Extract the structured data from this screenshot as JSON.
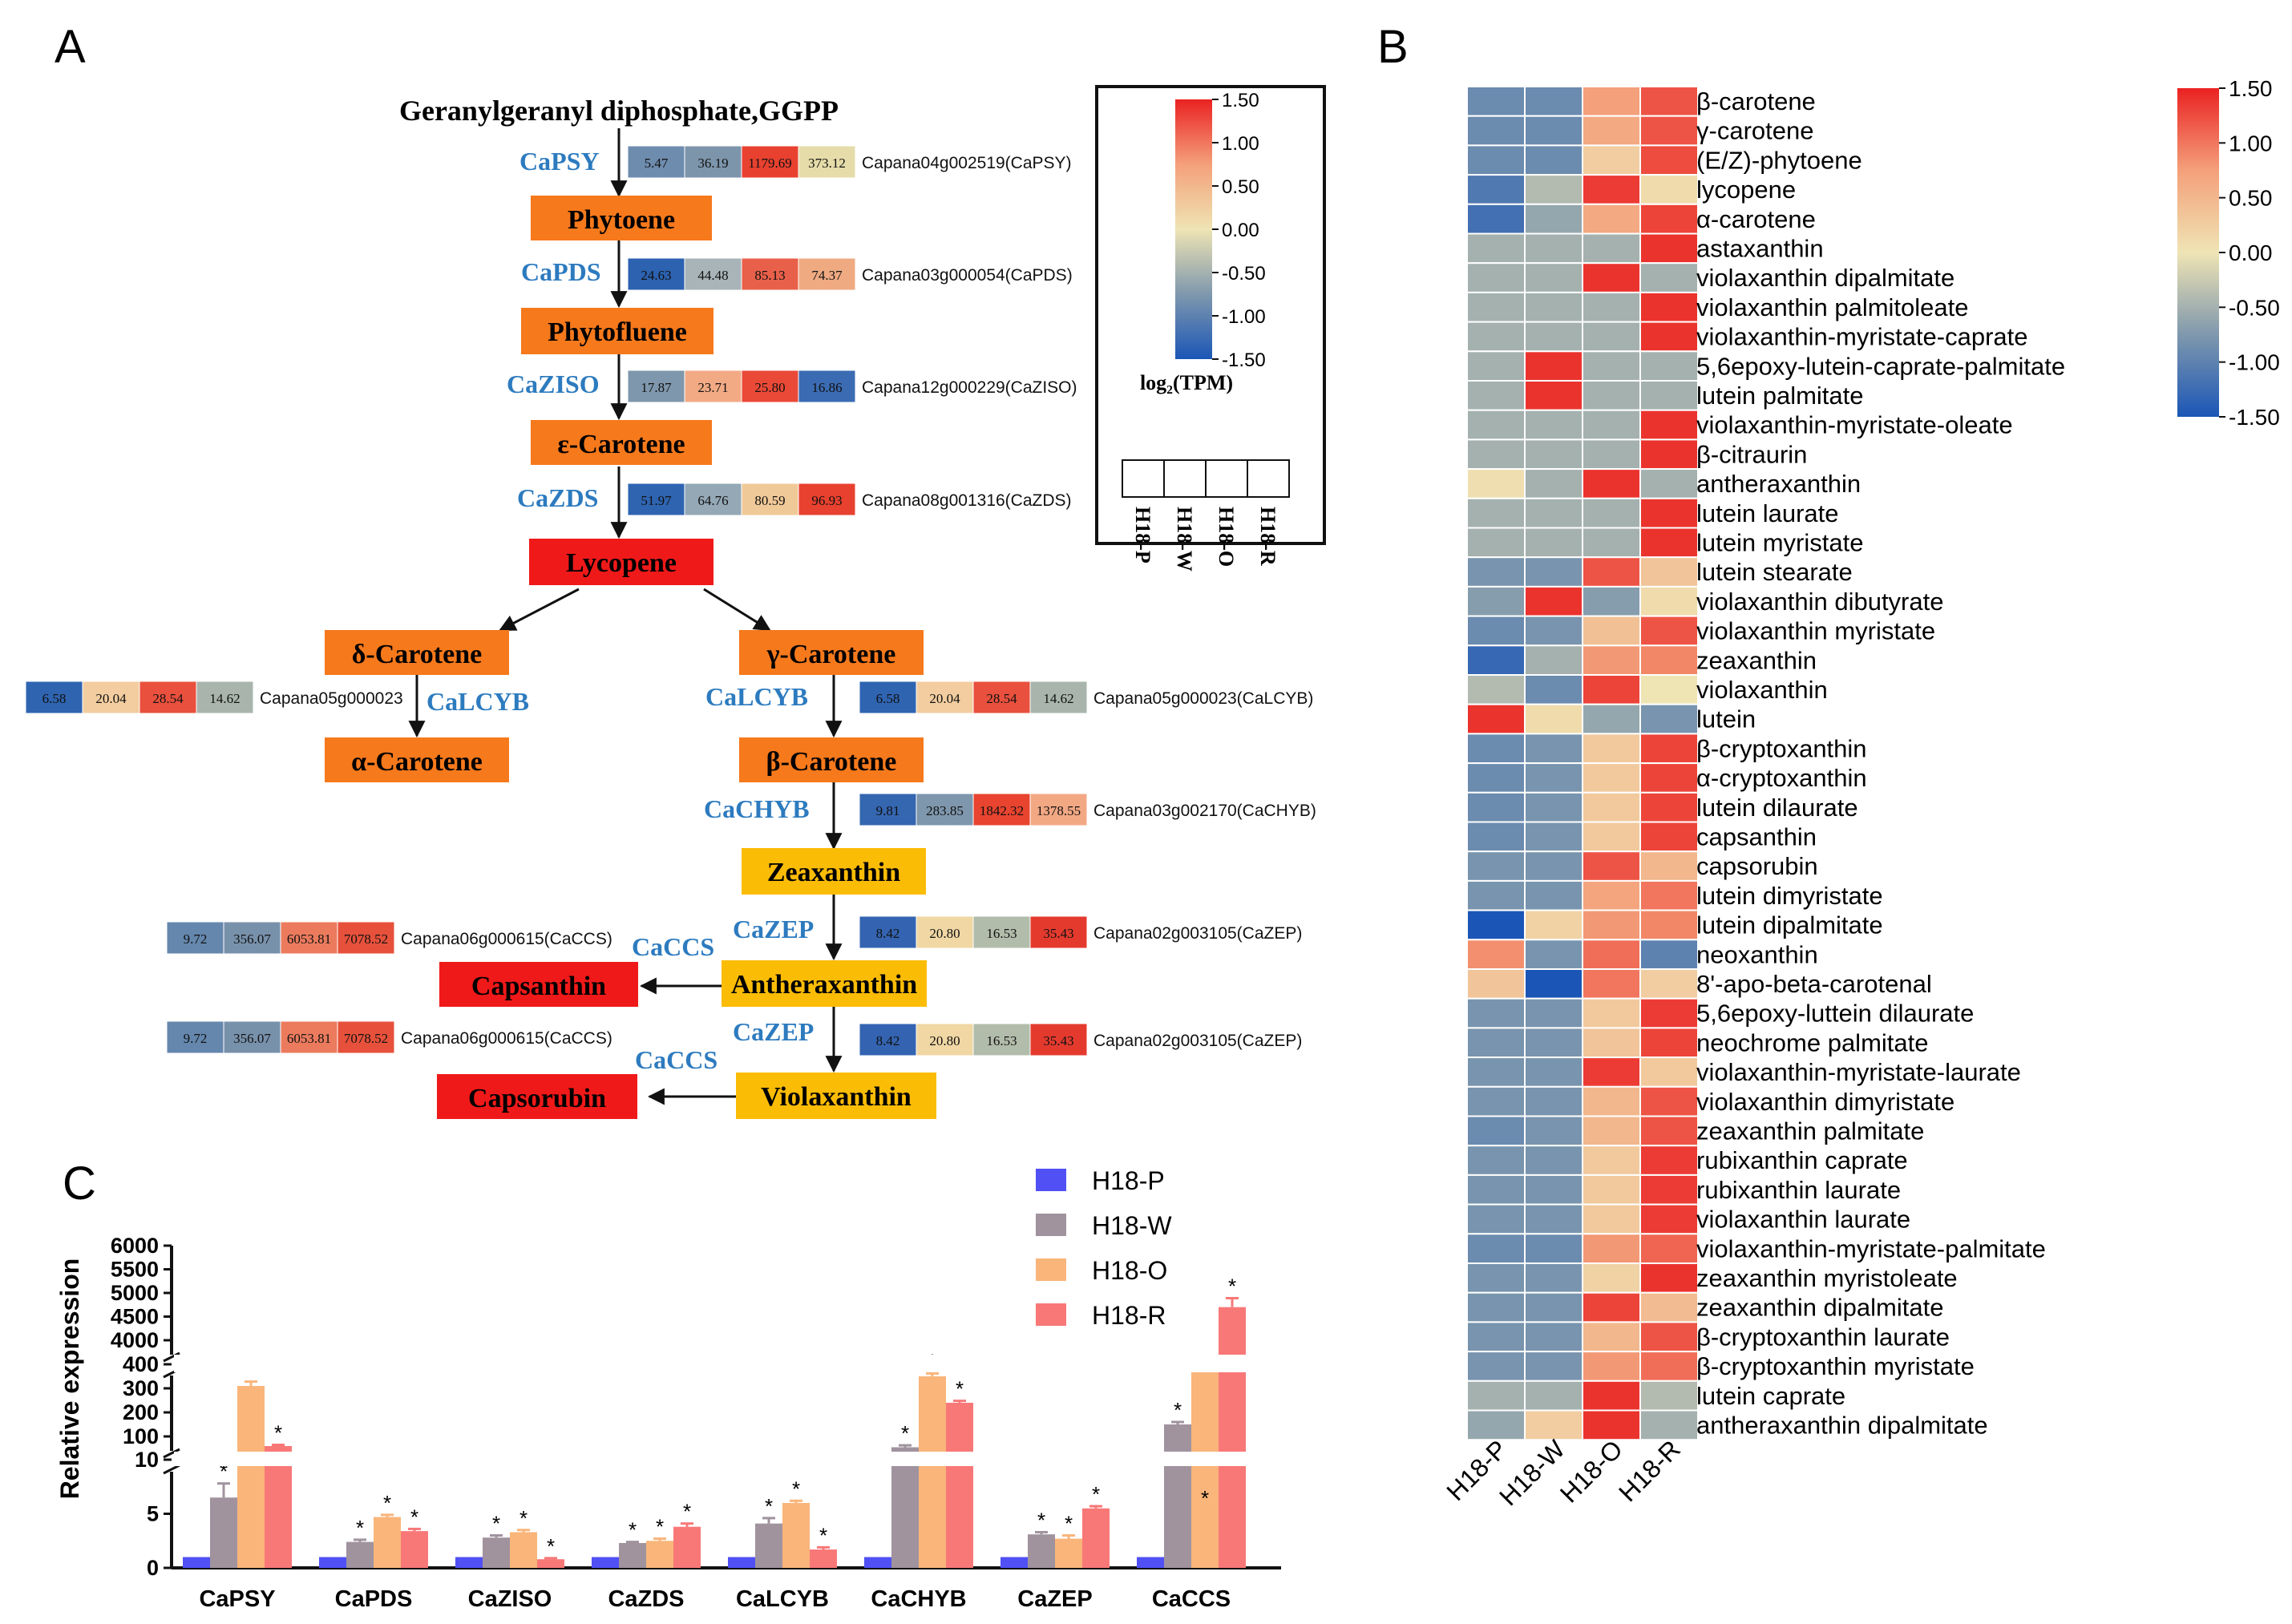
{
  "panelA": {
    "label": "A",
    "top_title": "Geranylgeranyl diphosphate,GGPP",
    "compounds": [
      {
        "name": "Phytoene",
        "color": "#f6791c"
      },
      {
        "name": "Phytofluene",
        "color": "#f6791c"
      },
      {
        "name": "ε-Carotene",
        "color": "#f6791c"
      },
      {
        "name": "Lycopene",
        "color": "#f01919"
      },
      {
        "name": "δ-Carotene",
        "color": "#f6791c"
      },
      {
        "name": "γ-Carotene",
        "color": "#f6791c"
      },
      {
        "name": "α-Carotene",
        "color": "#f6791c"
      },
      {
        "name": "β-Carotene",
        "color": "#f6791c"
      },
      {
        "name": "Zeaxanthin",
        "color": "#fbbc06"
      },
      {
        "name": "Antheraxanthin",
        "color": "#fbbc06"
      },
      {
        "name": "Capsanthin",
        "color": "#f01919"
      },
      {
        "name": "Violaxanthin",
        "color": "#fbbc06"
      },
      {
        "name": "Capsorubin",
        "color": "#f01919"
      }
    ],
    "enzymes": [
      "CaPSY",
      "CaPDS",
      "CaZISO",
      "CaZDS",
      "CaLCYB",
      "CaLCYB",
      "CaCHYB",
      "CaZEP",
      "CaCCS",
      "CaZEP",
      "CaCCS"
    ],
    "expression": [
      {
        "gene": "Capana04g002519(CaPSY)",
        "values": [
          "5.47",
          "36.19",
          "1179.69",
          "373.12"
        ],
        "colors": [
          "#6e8cae",
          "#7d95ab",
          "#e8412f",
          "#e6dcaa"
        ]
      },
      {
        "gene": "Capana03g000054(CaPDS)",
        "values": [
          "24.63",
          "44.48",
          "85.13",
          "74.37"
        ],
        "colors": [
          "#2c62b0",
          "#a8b4b8",
          "#e9604a",
          "#efaa82"
        ]
      },
      {
        "gene": "Capana12g000229(CaZISO)",
        "values": [
          "17.87",
          "23.71",
          "25.80",
          "16.86"
        ],
        "colors": [
          "#7f97ac",
          "#f2aa85",
          "#ea4937",
          "#3b6bb3"
        ]
      },
      {
        "gene": "Capana08g001316(CaZDS)",
        "values": [
          "51.97",
          "64.76",
          "80.59",
          "96.93"
        ],
        "colors": [
          "#2f64b1",
          "#94a8b6",
          "#f0c998",
          "#e8412f"
        ]
      },
      {
        "gene": "Capana05g000023",
        "values": [
          "6.58",
          "20.04",
          "28.54",
          "14.62"
        ],
        "colors": [
          "#2f64b1",
          "#f3cd9f",
          "#e9503d",
          "#a9b5ac"
        ]
      },
      {
        "gene": "Capana05g000023(CaLCYB)",
        "values": [
          "6.58",
          "20.04",
          "28.54",
          "14.62"
        ],
        "colors": [
          "#2f64b1",
          "#f3cd9f",
          "#e9503d",
          "#a9b5ac"
        ]
      },
      {
        "gene": "Capana03g002170(CaCHYB)",
        "values": [
          "9.81",
          "283.85",
          "1842.32",
          "1378.55"
        ],
        "colors": [
          "#3566b0",
          "#7e97ad",
          "#e8442f",
          "#f3a884"
        ]
      },
      {
        "gene": "Capana06g000615(CaCCS)",
        "values": [
          "9.72",
          "356.07",
          "6053.81",
          "7078.52"
        ],
        "colors": [
          "#6587ad",
          "#7891ab",
          "#ec7b5e",
          "#e7513b"
        ]
      },
      {
        "gene": "Capana02g003105(CaZEP)",
        "values": [
          "8.42",
          "20.80",
          "16.53",
          "35.43"
        ],
        "colors": [
          "#3464b1",
          "#f0d7a4",
          "#b2bcaa",
          "#e43a2e"
        ]
      },
      {
        "gene": "Capana06g000615(CaCCS)",
        "values": [
          "9.72",
          "356.07",
          "6053.81",
          "7078.52"
        ],
        "colors": [
          "#6587ad",
          "#7891ab",
          "#ec7b5e",
          "#e7513b"
        ]
      },
      {
        "gene": "Capana02g003105(CaZEP)",
        "values": [
          "8.42",
          "20.80",
          "16.53",
          "35.43"
        ],
        "colors": [
          "#3464b1",
          "#f0d7a4",
          "#b2bcaa",
          "#e43a2e"
        ]
      }
    ],
    "legend": {
      "ticks": [
        "1.50",
        "1.00",
        "0.50",
        "0.00",
        "-0.50",
        "-1.00",
        "-1.50"
      ],
      "title": "log₂(TPM)",
      "samples": [
        "H18-P",
        "H18-W",
        "H18-O",
        "H18-R"
      ]
    }
  },
  "panelB": {
    "label": "B",
    "samples": [
      "H18-P",
      "H18-W",
      "H18-O",
      "H18-R"
    ],
    "compounds": [
      "β-carotene",
      "γ-carotene",
      "(E/Z)-phytoene",
      "lycopene",
      "α-carotene",
      "astaxanthin",
      "violaxanthin dipalmitate",
      "violaxanthin palmitoleate",
      "violaxanthin-myristate-caprate",
      "5,6epoxy-lutein-caprate-palmitate",
      "lutein palmitate",
      "violaxanthin-myristate-oleate",
      "β-citraurin",
      "antheraxanthin",
      "lutein laurate",
      "lutein myristate",
      "lutein stearate",
      "violaxanthin dibutyrate",
      "violaxanthin myristate",
      "zeaxanthin",
      "violaxanthin",
      "lutein",
      "β-cryptoxanthin",
      "α-cryptoxanthin",
      "lutein dilaurate",
      "capsanthin",
      "capsorubin",
      "lutein dimyristate",
      "lutein dipalmitate",
      "neoxanthin",
      "8'-apo-beta-carotenal",
      "5,6epoxy-luttein dilaurate",
      "neochrome palmitate",
      "violaxanthin-myristate-laurate",
      "violaxanthin dimyristate",
      "zeaxanthin palmitate",
      "rubixanthin caprate",
      "rubixanthin laurate",
      "violaxanthin laurate",
      "violaxanthin-myristate-palmitate",
      "zeaxanthin myristoleate",
      "zeaxanthin dipalmitate",
      "β-cryptoxanthin laurate",
      "β-cryptoxanthin myristate",
      "lutein caprate",
      "antheraxanthin dipalmitate"
    ],
    "z": [
      [
        -0.9,
        -0.9,
        0.75,
        1.2
      ],
      [
        -0.9,
        -0.9,
        0.65,
        1.2
      ],
      [
        -0.9,
        -0.9,
        0.25,
        1.25
      ],
      [
        -1.1,
        -0.4,
        1.35,
        0.1
      ],
      [
        -1.2,
        -0.6,
        0.65,
        1.3
      ],
      [
        -0.5,
        -0.5,
        -0.5,
        1.4
      ],
      [
        -0.5,
        -0.5,
        1.4,
        -0.5
      ],
      [
        -0.5,
        -0.5,
        -0.5,
        1.4
      ],
      [
        -0.5,
        -0.5,
        -0.5,
        1.4
      ],
      [
        -0.5,
        1.4,
        -0.5,
        -0.5
      ],
      [
        -0.5,
        1.4,
        -0.5,
        -0.5
      ],
      [
        -0.5,
        -0.5,
        -0.5,
        1.4
      ],
      [
        -0.5,
        -0.5,
        -0.5,
        1.4
      ],
      [
        0.05,
        -0.5,
        1.4,
        -0.5
      ],
      [
        -0.5,
        -0.5,
        -0.5,
        1.4
      ],
      [
        -0.5,
        -0.5,
        -0.5,
        1.4
      ],
      [
        -0.8,
        -0.8,
        1.2,
        0.35
      ],
      [
        -0.7,
        1.4,
        -0.7,
        0.1
      ],
      [
        -0.9,
        -0.8,
        0.4,
        1.2
      ],
      [
        -1.3,
        -0.5,
        0.8,
        0.9
      ],
      [
        -0.4,
        -0.9,
        1.3,
        0.0
      ],
      [
        1.4,
        0.1,
        -0.6,
        -0.8
      ],
      [
        -0.9,
        -0.8,
        0.3,
        1.3
      ],
      [
        -0.9,
        -0.8,
        0.3,
        1.3
      ],
      [
        -0.9,
        -0.8,
        0.3,
        1.3
      ],
      [
        -0.9,
        -0.8,
        0.3,
        1.3
      ],
      [
        -0.8,
        -0.8,
        1.2,
        0.5
      ],
      [
        -0.8,
        -0.8,
        0.7,
        1.0
      ],
      [
        -1.5,
        0.2,
        0.8,
        0.9
      ],
      [
        0.85,
        -0.8,
        1.05,
        -1.0
      ],
      [
        0.35,
        -1.5,
        1.0,
        0.25
      ],
      [
        -0.8,
        -0.8,
        0.3,
        1.35
      ],
      [
        -0.8,
        -0.8,
        0.35,
        1.3
      ],
      [
        -0.8,
        -0.8,
        1.35,
        0.3
      ],
      [
        -0.8,
        -0.8,
        0.5,
        1.2
      ],
      [
        -0.9,
        -0.8,
        0.5,
        1.2
      ],
      [
        -0.8,
        -0.8,
        0.3,
        1.35
      ],
      [
        -0.8,
        -0.8,
        0.3,
        1.35
      ],
      [
        -0.8,
        -0.8,
        0.3,
        1.35
      ],
      [
        -0.9,
        -0.9,
        0.8,
        1.1
      ],
      [
        -0.8,
        -0.8,
        0.2,
        1.4
      ],
      [
        -0.8,
        -0.8,
        1.3,
        0.45
      ],
      [
        -0.8,
        -0.8,
        0.5,
        1.2
      ],
      [
        -0.8,
        -0.8,
        0.8,
        1.05
      ],
      [
        -0.5,
        -0.5,
        1.4,
        -0.4
      ],
      [
        -0.6,
        0.25,
        1.4,
        -0.5
      ]
    ],
    "colorbar_ticks": [
      "1.50",
      "1.00",
      "0.50",
      "0.00",
      "-0.50",
      "-1.00",
      "-1.50"
    ]
  },
  "panelC": {
    "label": "C",
    "ylabel": "Relative expression",
    "legend": [
      "H18-P",
      "H18-W",
      "H18-O",
      "H18-R"
    ],
    "colors": [
      "#5050f5",
      "#a0939e",
      "#f9b57a",
      "#f87878"
    ],
    "seg_low_ticks": [
      "0",
      "5",
      "10"
    ],
    "seg_mid_ticks": [
      "100",
      "200",
      "300",
      "400"
    ],
    "seg_high_ticks": [
      "4000",
      "4500",
      "5000",
      "5500",
      "6000"
    ],
    "star": "*",
    "chart_data": {
      "type": "bar",
      "categories": [
        "CaPSY",
        "CaPDS",
        "CaZISO",
        "CaZDS",
        "CaLCYB",
        "CaCHYB",
        "CaZEP",
        "CaCCS"
      ],
      "series": [
        {
          "name": "H18-P",
          "values": [
            1,
            1,
            1,
            1,
            1,
            1,
            1,
            1
          ],
          "errors": [
            0,
            0,
            0,
            0,
            0,
            0,
            0,
            0
          ],
          "sig": [
            false,
            false,
            false,
            false,
            false,
            false,
            false,
            false
          ]
        },
        {
          "name": "H18-W",
          "values": [
            6.5,
            2.4,
            2.8,
            2.3,
            4.1,
            55,
            3.1,
            150
          ],
          "errors": [
            1.3,
            0.2,
            0.2,
            0.1,
            0.5,
            8,
            0.2,
            10
          ],
          "sig": [
            true,
            true,
            true,
            true,
            true,
            true,
            true,
            true
          ]
        },
        {
          "name": "H18-O",
          "values": [
            310,
            4.7,
            3.3,
            2.5,
            6.0,
            350,
            2.7,
            400
          ],
          "errors": [
            18,
            0.2,
            0.2,
            0.2,
            0.2,
            12,
            0.3,
            10
          ],
          "sig": [
            true,
            true,
            true,
            true,
            true,
            true,
            true,
            true
          ]
        },
        {
          "name": "H18-R",
          "values": [
            60,
            3.4,
            0.8,
            3.8,
            1.7,
            240,
            5.5,
            4700
          ],
          "errors": [
            5,
            0.2,
            0.1,
            0.3,
            0.2,
            8,
            0.2,
            190
          ],
          "sig": [
            true,
            true,
            true,
            true,
            true,
            true,
            true,
            true
          ]
        }
      ],
      "ylabel": "Relative expression",
      "broken_axis": [
        [
          0,
          10
        ],
        [
          0,
          400
        ],
        [
          4000,
          6000
        ]
      ]
    }
  }
}
